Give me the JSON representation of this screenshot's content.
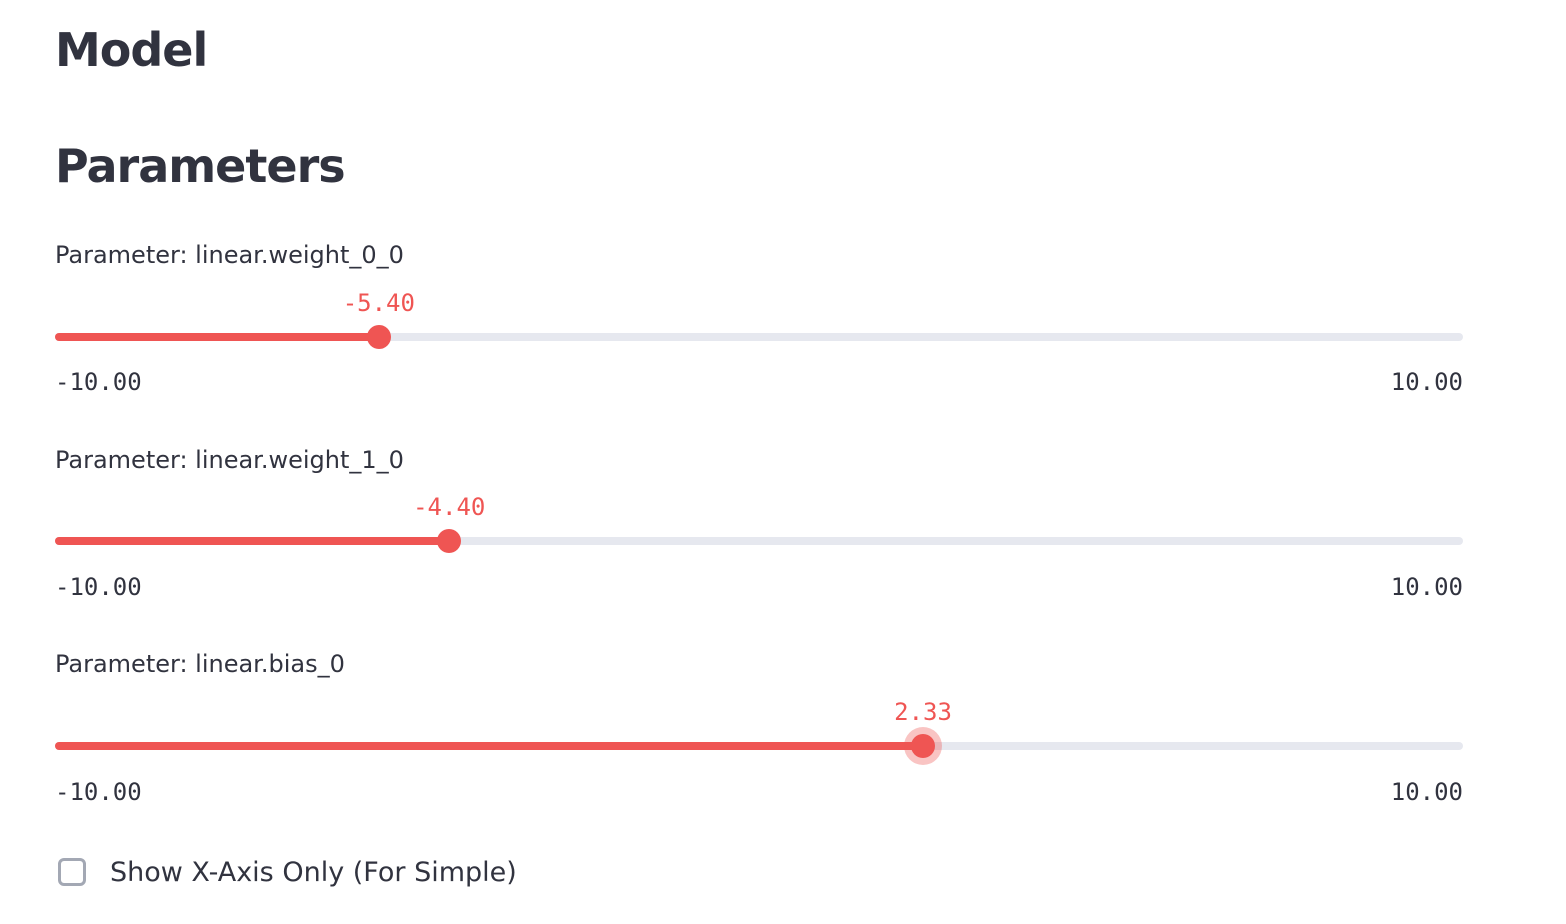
{
  "page": {
    "heading_model": "Model",
    "heading_parameters": "Parameters"
  },
  "accent_color": "#ef5553",
  "sliders": [
    {
      "label": "Parameter: linear.weight_0_0",
      "value": -5.4,
      "value_text": "-5.40",
      "min": -10,
      "max": 10,
      "min_text": "-10.00",
      "max_text": "10.00",
      "focused": false
    },
    {
      "label": "Parameter: linear.weight_1_0",
      "value": -4.4,
      "value_text": "-4.40",
      "min": -10,
      "max": 10,
      "min_text": "-10.00",
      "max_text": "10.00",
      "focused": false
    },
    {
      "label": "Parameter: linear.bias_0",
      "value": 2.33,
      "value_text": "2.33",
      "min": -10,
      "max": 10,
      "min_text": "-10.00",
      "max_text": "10.00",
      "focused": true
    }
  ],
  "checkbox": {
    "label": "Show X-Axis Only (For Simple)",
    "checked": false
  }
}
